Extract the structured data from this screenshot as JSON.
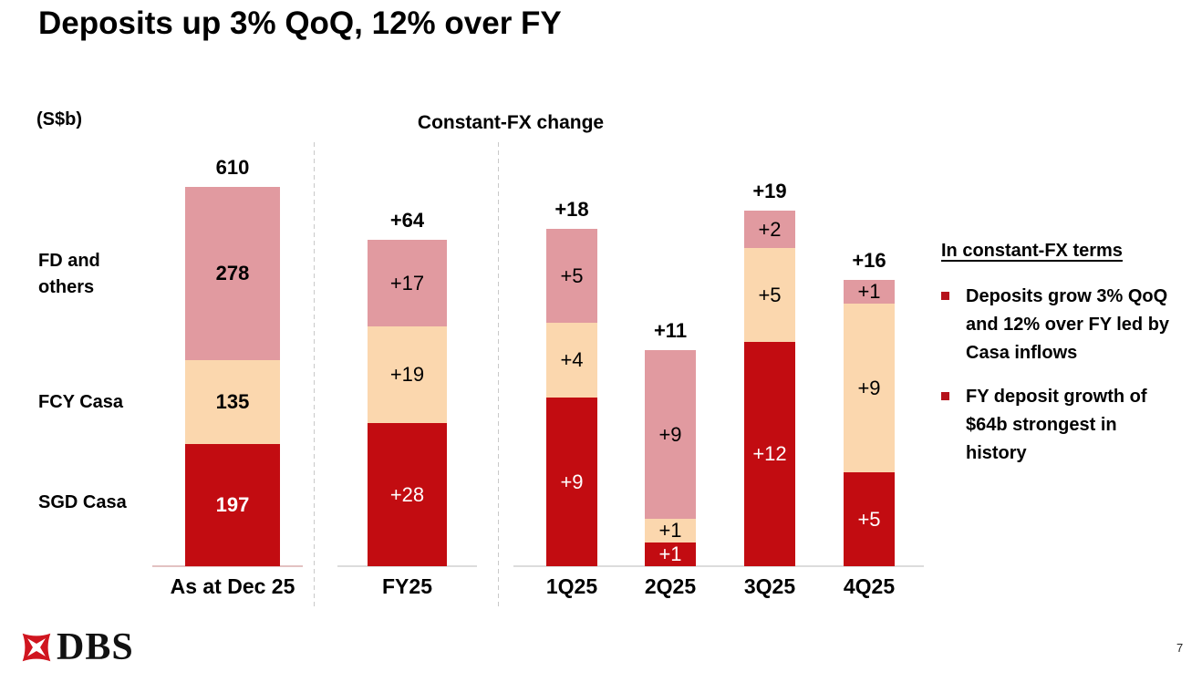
{
  "slide": {
    "title": "Deposits up 3% QoQ, 12% over FY",
    "units_label": "(S$b)",
    "fx_header": "Constant-FX change"
  },
  "chart_data": {
    "type": "bar",
    "stacked": true,
    "unit": "S$b",
    "series_labels": [
      "FD and others",
      "FCY Casa",
      "SGD Casa"
    ],
    "series_colors": {
      "FD and others": "#e19aa0",
      "FCY Casa": "#fbd7ae",
      "SGD Casa": "#c20c11"
    },
    "series_text_colors": {
      "FD and others": "#000000",
      "FCY Casa": "#000000",
      "SGD Casa": "#ffffff"
    },
    "legend_position": "left-row-labels",
    "grid": false,
    "groups": [
      {
        "label": "As at Dec 25",
        "total": 610,
        "total_label": "610",
        "segments": [
          {
            "series": "FD and others",
            "value": 278,
            "label": "278"
          },
          {
            "series": "FCY Casa",
            "value": 135,
            "label": "135"
          },
          {
            "series": "SGD Casa",
            "value": 197,
            "label": "197"
          }
        ]
      },
      {
        "label": "FY25",
        "total": 64,
        "total_label": "+64",
        "segments": [
          {
            "series": "FD and others",
            "value": 17,
            "label": "+17"
          },
          {
            "series": "FCY Casa",
            "value": 19,
            "label": "+19"
          },
          {
            "series": "SGD Casa",
            "value": 28,
            "label": "+28"
          }
        ]
      },
      {
        "label": "1Q25",
        "total": 18,
        "total_label": "+18",
        "segments": [
          {
            "series": "FD and others",
            "value": 5,
            "label": "+5"
          },
          {
            "series": "FCY Casa",
            "value": 4,
            "label": "+4"
          },
          {
            "series": "SGD Casa",
            "value": 9,
            "label": "+9"
          }
        ]
      },
      {
        "label": "2Q25",
        "total": 11,
        "total_label": "+11",
        "segments": [
          {
            "series": "FD and others",
            "value": 9,
            "label": "+9"
          },
          {
            "series": "FCY Casa",
            "value": 1,
            "label": "+1"
          },
          {
            "series": "SGD Casa",
            "value": 1,
            "label": "+1"
          }
        ]
      },
      {
        "label": "3Q25",
        "total": 19,
        "total_label": "+19",
        "segments": [
          {
            "series": "FD and others",
            "value": 2,
            "label": "+2"
          },
          {
            "series": "FCY Casa",
            "value": 5,
            "label": "+5"
          },
          {
            "series": "SGD Casa",
            "value": 12,
            "label": "+12"
          }
        ]
      },
      {
        "label": "4Q25",
        "total": 16,
        "total_label": "+16",
        "segments": [
          {
            "series": "FD and others",
            "value": 1,
            "label": "+1"
          },
          {
            "series": "FCY Casa",
            "value": 9,
            "label": "+9"
          },
          {
            "series": "SGD Casa",
            "value": 5,
            "label": "+5"
          }
        ]
      }
    ]
  },
  "sidebar": {
    "heading": "In constant-FX terms",
    "bullet_color": "#b5121b",
    "bullets": [
      {
        "text": "Deposits grow 3% QoQ and 12% over FY led by Casa inflows"
      },
      {
        "text": "FY deposit growth of $64b strongest in history"
      }
    ]
  },
  "footer": {
    "logo_text": "DBS",
    "logo_color": "#d0151f",
    "page_number": "7"
  }
}
